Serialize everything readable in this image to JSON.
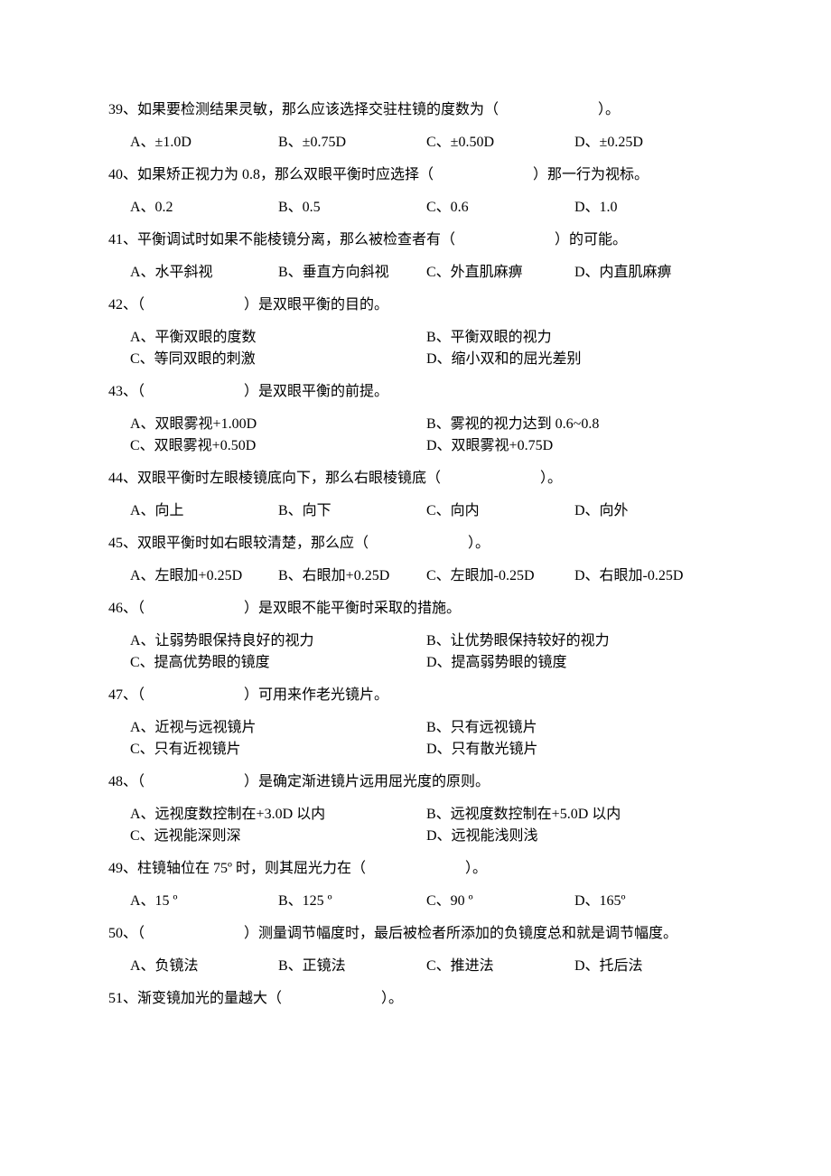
{
  "questions": [
    {
      "num": "39",
      "text": "、如果要检测结果灵敏，那么应该选择交驻柱镜的度数为（",
      "tail": "）。",
      "layout": "four",
      "opts": [
        "A、±1.0D",
        "B、±0.75D",
        "C、±0.50D",
        "D、±0.25D"
      ]
    },
    {
      "num": "40",
      "text": "、如果矫正视力为 0.8，那么双眼平衡时应选择（",
      "tail": "）那一行为视标。",
      "layout": "four",
      "opts": [
        "A、0.2",
        "B、0.5",
        "C、0.6",
        "D、1.0"
      ]
    },
    {
      "num": "41",
      "text": "、平衡调试时如果不能棱镜分离，那么被检查者有（",
      "tail": "）的可能。",
      "layout": "four",
      "opts": [
        "A、水平斜视",
        "B、垂直方向斜视",
        "C、外直肌麻痹",
        "D、内直肌麻痹"
      ]
    },
    {
      "num": "42",
      "text": "、（",
      "tail": "）是双眼平衡的目的。",
      "layout": "two",
      "opts": [
        "A、平衡双眼的度数",
        "B、平衡双眼的视力",
        "C、等同双眼的刺激",
        "D、缩小双和的屈光差别"
      ]
    },
    {
      "num": "43",
      "text": "、（",
      "tail": "）是双眼平衡的前提。",
      "layout": "two",
      "opts": [
        "A、双眼雾视+1.00D",
        "B、雾视的视力达到 0.6~0.8",
        "C、双眼雾视+0.50D",
        "D、双眼雾视+0.75D"
      ]
    },
    {
      "num": "44",
      "text": "、双眼平衡时左眼棱镜底向下，那么右眼棱镜底（",
      "tail": "）。",
      "layout": "four",
      "opts": [
        "A、向上",
        "B、向下",
        "C、向内",
        "D、向外"
      ]
    },
    {
      "num": "45",
      "text": "、双眼平衡时如右眼较清楚，那么应（",
      "tail": "）。",
      "layout": "four",
      "opts": [
        "A、左眼加+0.25D",
        "B、右眼加+0.25D",
        "C、左眼加-0.25D",
        "D、右眼加-0.25D"
      ]
    },
    {
      "num": "46",
      "text": "、（",
      "tail": "）是双眼不能平衡时采取的措施。",
      "layout": "two",
      "opts": [
        "A、让弱势眼保持良好的视力",
        "B、让优势眼保持较好的视力",
        "C、提高优势眼的镜度",
        "D、提高弱势眼的镜度"
      ]
    },
    {
      "num": "47",
      "text": "、（",
      "tail": "）可用来作老光镜片。",
      "layout": "two",
      "opts": [
        "A、近视与远视镜片",
        "B、只有远视镜片",
        "C、只有近视镜片",
        "D、只有散光镜片"
      ]
    },
    {
      "num": "48",
      "text": "、（",
      "tail": "）是确定渐进镜片远用屈光度的原则。",
      "layout": "two",
      "opts": [
        "A、远视度数控制在+3.0D 以内",
        "B、远视度数控制在+5.0D 以内",
        "C、远视能深则深",
        "D、远视能浅则浅"
      ]
    },
    {
      "num": "49",
      "text": "、柱镜轴位在 75º 时，则其屈光力在（",
      "tail": "）。",
      "layout": "four",
      "opts": [
        "A、15 º",
        "B、125 º",
        "C、90 º",
        "D、165º"
      ]
    },
    {
      "num": "50",
      "text": "、（",
      "tail": "）测量调节幅度时，最后被检者所添加的负镜度总和就是调节幅度。",
      "layout": "four",
      "opts": [
        "A、负镜法",
        "B、正镜法",
        "C、推进法",
        "D、托后法"
      ]
    },
    {
      "num": "51",
      "text": "、渐变镜加光的量越大（",
      "tail": "）。",
      "layout": "none",
      "opts": []
    }
  ]
}
